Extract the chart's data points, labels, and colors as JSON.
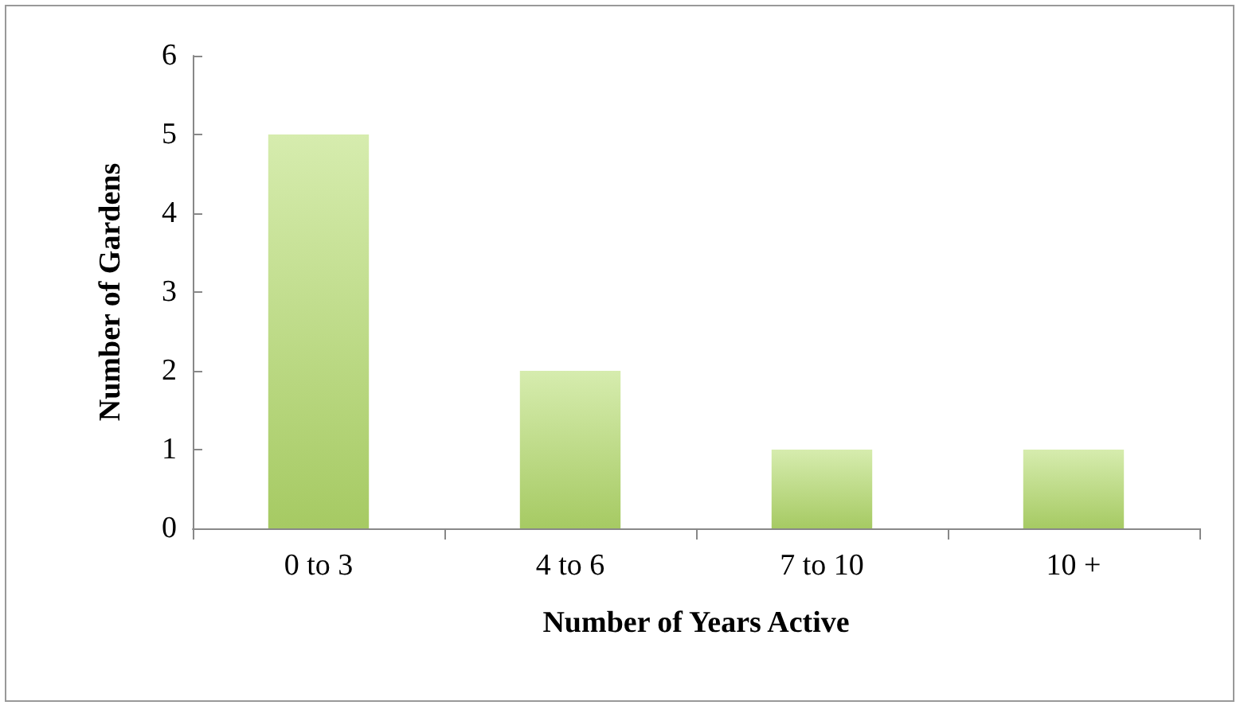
{
  "chart_data": {
    "type": "bar",
    "xlabel": "Number of Years Active",
    "ylabel": "Number of Gardens",
    "categories": [
      "0 to 3",
      "4 to 6",
      "7 to 10",
      "10 +"
    ],
    "values": [
      5,
      2,
      1,
      1
    ],
    "color": "#b4dc6c",
    "ylim": [
      0,
      6
    ],
    "yticks": [
      0,
      1,
      2,
      3,
      4,
      5,
      6
    ],
    "grid": false
  }
}
